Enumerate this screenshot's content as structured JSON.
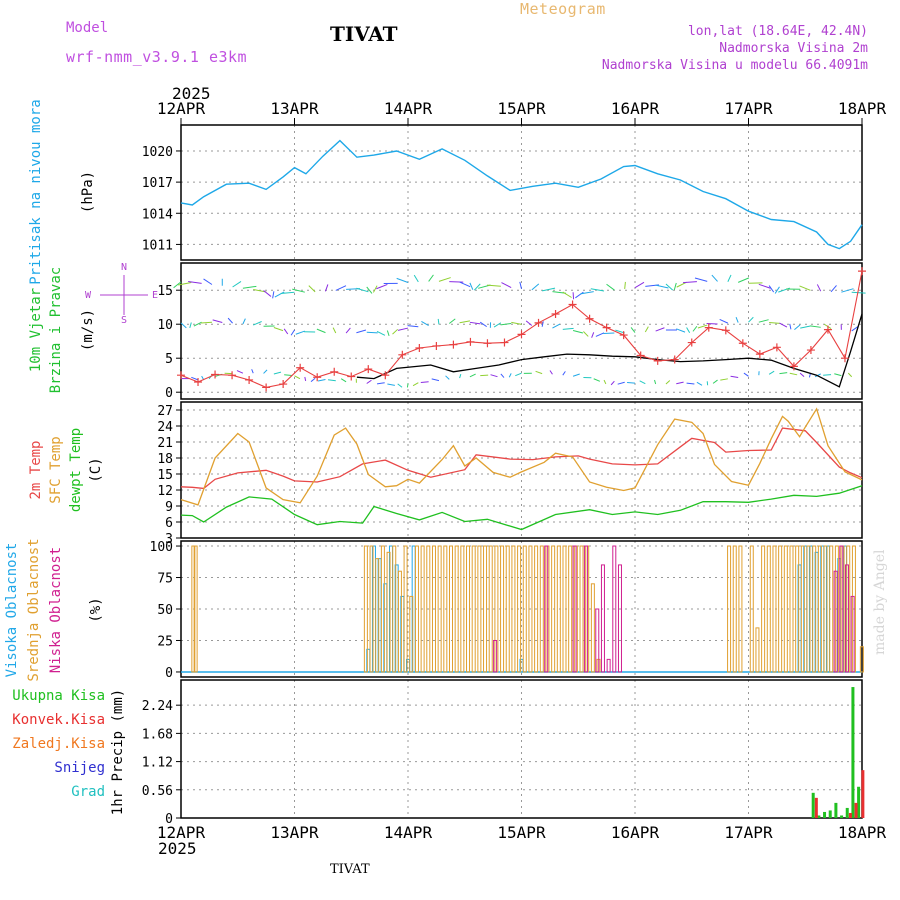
{
  "header": {
    "model_label": "Model",
    "model_name": "wrf-nmm_v3.9.1 e3km",
    "title": "TIVAT",
    "subtitle": "Meteogram",
    "location": "lon,lat (18.64E, 42.4N)",
    "elevation": "Nadmorska Visina 2m",
    "model_elevation": "Nadmorska Visina u modelu 66.4091m"
  },
  "footer": {
    "station": "TIVAT",
    "credit": "made by Angel"
  },
  "colors": {
    "model_label": "#c050e0",
    "subtitle": "#e8b870",
    "info": "#b040d0",
    "pressure": "#1ea8e8",
    "wind_title": "#20c030",
    "wind_speed": "#000000",
    "wind_gust": "#e84040",
    "temp_2m": "#e84848",
    "temp_sfc": "#e0a030",
    "temp_dew": "#20c020",
    "cloud_high": "#22a8e8",
    "cloud_mid": "#e0a030",
    "cloud_low": "#d02090",
    "precip_total": "#20c020",
    "precip_conv": "#e83030",
    "precip_freezing": "#f07820",
    "precip_snow": "#3030d0",
    "precip_hail": "#20c0c0"
  },
  "chart_data": [
    {
      "type": "line",
      "title": "Pritisak na nivou mora",
      "ylabel": "(hPa)",
      "ylim": [
        1009.5,
        1022.5
      ],
      "yticks": [
        "1011",
        "1014",
        "1017",
        "1020"
      ],
      "ytick_values": [
        1011,
        1014,
        1017,
        1020
      ],
      "year_top": "2025",
      "year_bottom": "2025",
      "x_days": [
        "12APR",
        "13APR",
        "14APR",
        "15APR",
        "16APR",
        "17APR",
        "18APR"
      ],
      "grid": true,
      "series": [
        {
          "name": "Pritisak",
          "x": [
            0,
            0.1,
            0.2,
            0.4,
            0.6,
            0.75,
            0.9,
            1.0,
            1.1,
            1.25,
            1.4,
            1.55,
            1.7,
            1.9,
            2.1,
            2.3,
            2.5,
            2.7,
            2.9,
            3.1,
            3.3,
            3.5,
            3.7,
            3.9,
            4.0,
            4.2,
            4.4,
            4.6,
            4.8,
            5.0,
            5.2,
            5.4,
            5.6,
            5.7,
            5.8,
            5.9,
            6.0
          ],
          "values": [
            1015.0,
            1014.8,
            1015.6,
            1016.8,
            1016.9,
            1016.3,
            1017.5,
            1018.4,
            1017.8,
            1019.5,
            1021.0,
            1019.4,
            1019.6,
            1020.0,
            1019.2,
            1020.2,
            1019.1,
            1017.6,
            1016.2,
            1016.6,
            1016.9,
            1016.5,
            1017.3,
            1018.5,
            1018.6,
            1017.8,
            1017.2,
            1016.1,
            1015.4,
            1014.2,
            1013.4,
            1013.2,
            1012.2,
            1011.0,
            1010.6,
            1011.3,
            1012.9
          ]
        }
      ]
    },
    {
      "type": "line",
      "title1": "10m Vjetar",
      "title2": "Brzina i Pravac",
      "ylabel": "(m/s)",
      "ylim": [
        -1,
        19
      ],
      "yticks": [
        "0",
        "5",
        "10",
        "15"
      ],
      "ytick_values": [
        0,
        5,
        10,
        15
      ],
      "grid": true,
      "direction_legend": [
        "N",
        "S",
        "W",
        "E"
      ],
      "barb_rows": [
        2,
        9.5,
        15.5
      ],
      "series": [
        {
          "name": "Brzina",
          "x": [
            1.55,
            1.7,
            1.9,
            2.2,
            2.4,
            2.6,
            2.8,
            3.0,
            3.2,
            3.4,
            3.6,
            3.8,
            4.0,
            4.2,
            4.4,
            4.6,
            4.8,
            5.0,
            5.2,
            5.4,
            5.6,
            5.8,
            5.9,
            6.0
          ],
          "values": [
            2.2,
            2.0,
            3.5,
            4.0,
            3.0,
            3.5,
            4.0,
            4.8,
            5.2,
            5.6,
            5.5,
            5.3,
            5.2,
            4.8,
            4.5,
            4.6,
            4.8,
            5.0,
            4.7,
            3.5,
            2.5,
            0.8,
            6.0,
            11.5
          ]
        },
        {
          "name": "Udar",
          "x": [
            0,
            0.15,
            0.3,
            0.45,
            0.6,
            0.75,
            0.9,
            1.05,
            1.2,
            1.35,
            1.5,
            1.65,
            1.8,
            1.95,
            2.1,
            2.25,
            2.4,
            2.55,
            2.7,
            2.85,
            3.0,
            3.15,
            3.3,
            3.45,
            3.6,
            3.75,
            3.9,
            4.05,
            4.2,
            4.35,
            4.5,
            4.65,
            4.8,
            4.95,
            5.1,
            5.25,
            5.4,
            5.55,
            5.7,
            5.85,
            6.0
          ],
          "values": [
            2.5,
            1.5,
            2.6,
            2.5,
            1.8,
            0.7,
            1.2,
            3.6,
            2.2,
            3.0,
            2.3,
            3.4,
            2.5,
            5.5,
            6.5,
            6.8,
            7.0,
            7.4,
            7.2,
            7.3,
            8.5,
            10.2,
            11.5,
            12.9,
            10.8,
            9.5,
            8.4,
            5.4,
            4.6,
            4.8,
            7.3,
            9.5,
            9.1,
            7.2,
            5.6,
            6.6,
            3.8,
            6.2,
            9.2,
            5.0,
            17.8
          ]
        }
      ]
    },
    {
      "type": "line",
      "title1": "2m Temp",
      "title2": "SFC Temp",
      "title3": "dewpt Temp",
      "ylabel": "(C)",
      "ylim": [
        3,
        28.5
      ],
      "yticks": [
        "3",
        "6",
        "9",
        "12",
        "15",
        "18",
        "21",
        "24",
        "27"
      ],
      "ytick_values": [
        3,
        6,
        9,
        12,
        15,
        18,
        21,
        24,
        27
      ],
      "grid": true,
      "series": [
        {
          "name": "2m Temp",
          "x": [
            0,
            0.1,
            0.2,
            0.3,
            0.5,
            0.75,
            0.9,
            1.0,
            1.2,
            1.4,
            1.6,
            1.8,
            2.0,
            2.2,
            2.5,
            2.6,
            2.9,
            3.1,
            3.3,
            3.5,
            3.6,
            3.8,
            4.0,
            4.2,
            4.4,
            4.5,
            4.7,
            4.8,
            5.0,
            5.2,
            5.3,
            5.5,
            5.6,
            5.8,
            5.9,
            6.0
          ],
          "values": [
            12.6,
            12.5,
            12.3,
            14.0,
            15.2,
            15.7,
            14.6,
            13.7,
            13.5,
            14.5,
            16.9,
            17.6,
            15.7,
            14.4,
            15.8,
            18.6,
            17.8,
            17.7,
            18.2,
            18.4,
            17.8,
            16.9,
            16.7,
            16.9,
            20.1,
            21.7,
            20.9,
            19.1,
            19.4,
            19.5,
            23.6,
            23.1,
            20.9,
            16.3,
            15.2,
            14.3
          ]
        },
        {
          "name": "SFC Temp",
          "x": [
            0,
            0.15,
            0.3,
            0.5,
            0.6,
            0.75,
            0.9,
            1.05,
            1.2,
            1.35,
            1.45,
            1.55,
            1.65,
            1.8,
            1.9,
            2.0,
            2.1,
            2.3,
            2.4,
            2.5,
            2.6,
            2.75,
            2.9,
            3.0,
            3.2,
            3.3,
            3.45,
            3.6,
            3.75,
            3.9,
            4.0,
            4.2,
            4.35,
            4.5,
            4.6,
            4.7,
            4.85,
            5.0,
            5.1,
            5.2,
            5.3,
            5.35,
            5.45,
            5.5,
            5.6,
            5.7,
            5.85,
            6.0
          ],
          "values": [
            10.2,
            9.2,
            18.0,
            22.6,
            21.0,
            12.4,
            10.2,
            9.6,
            14.6,
            22.3,
            23.6,
            20.6,
            14.9,
            12.6,
            12.8,
            14.0,
            13.3,
            17.7,
            20.3,
            16.5,
            18.0,
            15.3,
            14.4,
            15.4,
            17.2,
            18.9,
            18.2,
            13.5,
            12.5,
            11.9,
            12.4,
            20.5,
            25.3,
            24.7,
            22.6,
            16.8,
            13.6,
            12.9,
            17.0,
            21.6,
            25.8,
            24.9,
            22.0,
            23.8,
            27.2,
            20.3,
            15.4,
            13.9
          ]
        },
        {
          "name": "dewpt Temp",
          "x": [
            0,
            0.1,
            0.2,
            0.4,
            0.6,
            0.8,
            1.0,
            1.2,
            1.4,
            1.6,
            1.7,
            1.9,
            2.1,
            2.3,
            2.5,
            2.7,
            3.0,
            3.3,
            3.6,
            3.8,
            4.0,
            4.2,
            4.4,
            4.6,
            4.8,
            5.0,
            5.2,
            5.4,
            5.6,
            5.8,
            6.0
          ],
          "values": [
            7.3,
            7.2,
            6.0,
            8.8,
            10.7,
            10.3,
            7.4,
            5.5,
            6.1,
            5.8,
            8.9,
            7.6,
            6.4,
            7.8,
            6.1,
            6.5,
            4.6,
            7.4,
            8.3,
            7.4,
            7.9,
            7.4,
            8.2,
            9.8,
            9.8,
            9.7,
            10.3,
            11.0,
            10.8,
            11.4,
            12.8
          ]
        }
      ]
    },
    {
      "type": "bar",
      "title1": "Visoka Oblacnost",
      "title2": "Srednja Oblacnost",
      "title3": "Niska Oblacnost",
      "ylabel": "(%)",
      "ylim": [
        -4,
        104
      ],
      "yticks": [
        "0",
        "25",
        "50",
        "75",
        "100"
      ],
      "ytick_values": [
        0,
        25,
        50,
        75,
        100
      ],
      "grid": true,
      "series": [
        {
          "name": "Visoka Oblacnost",
          "x": [
            1.65,
            1.7,
            1.75,
            1.8,
            1.85,
            1.9,
            1.95,
            2.0,
            2.05,
            3.0,
            5.45,
            5.5,
            5.55,
            5.6,
            5.65,
            5.7,
            5.8,
            5.85
          ],
          "values": [
            18,
            100,
            90,
            70,
            100,
            85,
            60,
            10,
            100,
            10,
            85,
            100,
            100,
            95,
            100,
            100,
            90,
            100
          ]
        },
        {
          "name": "Srednja Oblacnost",
          "x": [
            0.1,
            0.12,
            1.62,
            1.67,
            1.72,
            1.77,
            1.82,
            1.87,
            1.92,
            1.97,
            2.02,
            2.07,
            2.12,
            2.17,
            2.22,
            2.27,
            2.32,
            2.37,
            2.42,
            2.47,
            2.52,
            2.57,
            2.62,
            2.67,
            2.72,
            2.77,
            2.82,
            2.87,
            2.92,
            2.97,
            3.02,
            3.07,
            3.12,
            3.17,
            3.22,
            3.27,
            3.32,
            3.37,
            3.42,
            3.47,
            3.52,
            3.57,
            3.62,
            3.67,
            4.82,
            4.87,
            4.92,
            5.02,
            5.07,
            5.12,
            5.17,
            5.22,
            5.27,
            5.32,
            5.37,
            5.42,
            5.47,
            5.52,
            5.57,
            5.62,
            5.67,
            5.72,
            5.77,
            5.82,
            5.87,
            5.92,
            5.99
          ],
          "values": [
            100,
            100,
            100,
            100,
            90,
            100,
            95,
            100,
            80,
            100,
            60,
            100,
            100,
            100,
            100,
            100,
            100,
            100,
            100,
            100,
            100,
            100,
            100,
            100,
            100,
            100,
            100,
            100,
            100,
            100,
            100,
            100,
            100,
            100,
            100,
            100,
            100,
            100,
            100,
            100,
            100,
            100,
            70,
            10,
            100,
            100,
            100,
            100,
            35,
            100,
            100,
            100,
            100,
            100,
            100,
            100,
            100,
            100,
            100,
            100,
            100,
            100,
            100,
            100,
            100,
            100,
            20
          ]
        },
        {
          "name": "Niska Oblacnost",
          "x": [
            2.75,
            3.2,
            3.45,
            3.55,
            3.65,
            3.7,
            3.75,
            3.8,
            3.85,
            5.75,
            5.8,
            5.85,
            5.9
          ],
          "values": [
            25,
            100,
            100,
            100,
            50,
            85,
            10,
            100,
            85,
            80,
            100,
            85,
            60
          ]
        }
      ]
    },
    {
      "type": "bar",
      "ylabel": "1hr Precip (mm)",
      "ylim": [
        0,
        2.74
      ],
      "yticks": [
        "0",
        "0.56",
        "1.12",
        "1.68",
        "2.24"
      ],
      "ytick_values": [
        0,
        0.56,
        1.12,
        1.68,
        2.24
      ],
      "legend": [
        "Ukupna Kisa",
        "Konvek.Kisa",
        "Zaledj.Kisa",
        "Snijeg",
        "Grad"
      ],
      "grid": true,
      "series": [
        {
          "name": "Ukupna Kisa",
          "x": [
            5.57,
            5.62,
            5.67,
            5.72,
            5.77,
            5.82,
            5.87,
            5.92,
            5.97
          ],
          "values": [
            0.5,
            0.05,
            0.12,
            0.15,
            0.3,
            0.05,
            0.2,
            2.6,
            0.62
          ]
        },
        {
          "name": "Konvek.Kisa",
          "x": [
            5.58,
            5.88,
            5.93,
            5.99
          ],
          "values": [
            0.4,
            0.1,
            0.3,
            0.95
          ]
        }
      ]
    }
  ]
}
